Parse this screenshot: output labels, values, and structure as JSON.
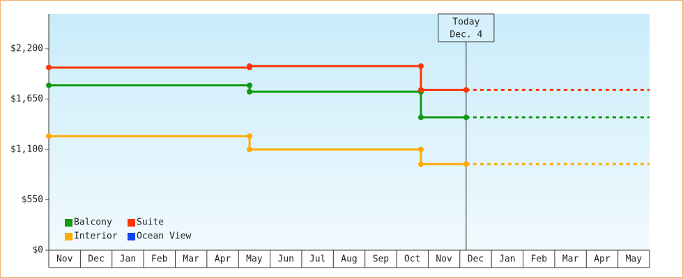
{
  "chart_data": {
    "type": "step-line",
    "ylim": [
      0,
      2580
    ],
    "yticks": [
      {
        "value": 0,
        "label": "$0"
      },
      {
        "value": 550,
        "label": "$550"
      },
      {
        "value": 1100,
        "label": "$1,100"
      },
      {
        "value": 1650,
        "label": "$1,650"
      },
      {
        "value": 2200,
        "label": "$2,200"
      }
    ],
    "xlim": [
      0,
      19
    ],
    "xticks": [
      {
        "value": 0.5,
        "label": "Nov"
      },
      {
        "value": 1.5,
        "label": "Dec"
      },
      {
        "value": 2.5,
        "label": "Jan"
      },
      {
        "value": 3.5,
        "label": "Feb"
      },
      {
        "value": 4.5,
        "label": "Mar"
      },
      {
        "value": 5.5,
        "label": "Apr"
      },
      {
        "value": 6.5,
        "label": "May"
      },
      {
        "value": 7.5,
        "label": "Jun"
      },
      {
        "value": 8.5,
        "label": "Jul"
      },
      {
        "value": 9.5,
        "label": "Aug"
      },
      {
        "value": 10.5,
        "label": "Sep"
      },
      {
        "value": 11.5,
        "label": "Oct"
      },
      {
        "value": 12.5,
        "label": "Nov"
      },
      {
        "value": 13.5,
        "label": "Dec"
      },
      {
        "value": 14.5,
        "label": "Jan"
      },
      {
        "value": 15.5,
        "label": "Feb"
      },
      {
        "value": 16.5,
        "label": "Mar"
      },
      {
        "value": 17.5,
        "label": "Apr"
      },
      {
        "value": 18.5,
        "label": "May"
      }
    ],
    "annotation": {
      "lines": [
        "Today",
        "Dec. 4"
      ],
      "x": 13.2
    },
    "series": [
      {
        "name": "Balcony",
        "color": "#119911",
        "x": [
          0,
          6.35,
          6.35,
          11.77,
          11.77,
          13.2
        ],
        "values": [
          1800,
          1800,
          1730,
          1730,
          1450,
          1450
        ]
      },
      {
        "name": "Suite",
        "color": "#ff3300",
        "x": [
          0,
          6.35,
          6.35,
          11.77,
          11.77,
          13.2
        ],
        "values": [
          1995,
          1995,
          2010,
          2010,
          1750,
          1750
        ]
      },
      {
        "name": "Interior",
        "color": "#ffaa00",
        "x": [
          0,
          6.35,
          6.35,
          11.77,
          11.77,
          13.2
        ],
        "values": [
          1245,
          1245,
          1100,
          1100,
          940,
          940
        ]
      },
      {
        "name": "Ocean View",
        "color": "#1144ee",
        "x": [],
        "values": []
      }
    ]
  }
}
